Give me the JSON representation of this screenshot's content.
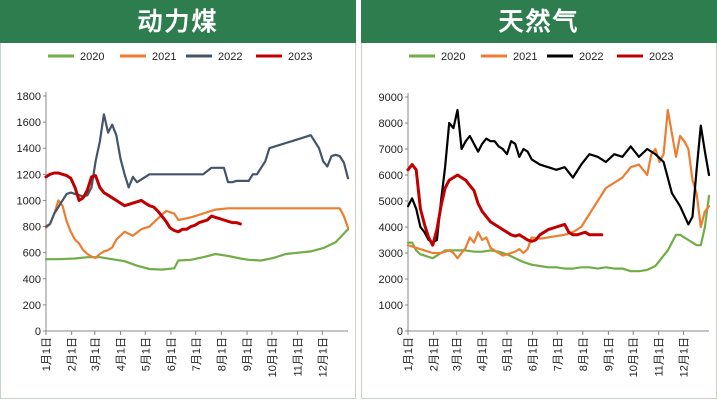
{
  "charts": [
    {
      "title": "动力煤",
      "chart_data": {
        "type": "line",
        "title": "动力煤",
        "xlabel": "",
        "ylabel": "",
        "ylim": [
          0,
          1800
        ],
        "yticks": [
          0,
          200,
          400,
          600,
          800,
          1000,
          1200,
          1400,
          1600,
          1800
        ],
        "x_ticks": [
          "1月1日",
          "2月1日",
          "3月1日",
          "4月1日",
          "5月1日",
          "6月1日",
          "7月1日",
          "8月1日",
          "9月1日",
          "10月1日",
          "11月1日",
          "12月1日"
        ],
        "x_unit": "day_of_year",
        "xlim": [
          0,
          365
        ],
        "legend_position": "top",
        "series": [
          {
            "name": "2020",
            "color": "#70ad47",
            "x": [
              0,
              15,
              35,
              50,
              65,
              80,
              95,
              110,
              125,
              140,
              155,
              160,
              175,
              190,
              205,
              220,
              235,
              245,
              260,
              275,
              290,
              305,
              320,
              335,
              350,
              365
            ],
            "y": [
              550,
              550,
              555,
              565,
              565,
              550,
              535,
              500,
              475,
              470,
              480,
              540,
              545,
              565,
              590,
              575,
              555,
              545,
              540,
              560,
              590,
              600,
              610,
              635,
              680,
              780
            ]
          },
          {
            "name": "2021",
            "color": "#ed7d31",
            "x": [
              0,
              5,
              10,
              15,
              20,
              25,
              30,
              35,
              40,
              45,
              50,
              55,
              60,
              65,
              70,
              75,
              80,
              85,
              95,
              105,
              115,
              125,
              135,
              145,
              155,
              160,
              175,
              190,
              205,
              220,
              240,
              260,
              280,
              300,
              320,
              340,
              350,
              355,
              360,
              365
            ],
            "y": [
              790,
              820,
              900,
              1000,
              960,
              840,
              760,
              700,
              670,
              620,
              590,
              570,
              560,
              590,
              610,
              620,
              640,
              700,
              760,
              730,
              780,
              800,
              860,
              920,
              900,
              850,
              870,
              900,
              930,
              940,
              940,
              940,
              940,
              940,
              940,
              940,
              940,
              940,
              880,
              790
            ]
          },
          {
            "name": "2022",
            "color": "#44546a",
            "x": [
              0,
              5,
              10,
              15,
              20,
              25,
              30,
              35,
              40,
              45,
              50,
              55,
              60,
              65,
              70,
              75,
              80,
              85,
              90,
              95,
              100,
              105,
              110,
              115,
              120,
              125,
              130,
              135,
              140,
              145,
              150,
              160,
              170,
              180,
              190,
              200,
              205,
              210,
              215,
              220,
              225,
              230,
              235,
              240,
              245,
              250,
              255,
              260,
              265,
              270,
              280,
              290,
              300,
              310,
              320,
              330,
              335,
              340,
              345,
              350,
              355,
              360,
              365
            ],
            "y": [
              800,
              820,
              900,
              950,
              1000,
              1050,
              1060,
              1050,
              1040,
              1030,
              1040,
              1100,
              1300,
              1450,
              1660,
              1520,
              1580,
              1500,
              1320,
              1200,
              1100,
              1180,
              1140,
              1160,
              1180,
              1200,
              1200,
              1200,
              1200,
              1200,
              1200,
              1200,
              1200,
              1200,
              1200,
              1250,
              1250,
              1250,
              1250,
              1140,
              1140,
              1150,
              1150,
              1150,
              1150,
              1200,
              1200,
              1250,
              1300,
              1400,
              1420,
              1440,
              1460,
              1480,
              1500,
              1400,
              1300,
              1260,
              1340,
              1350,
              1340,
              1290,
              1170
            ]
          },
          {
            "name": "2023",
            "color": "#c00000",
            "x": [
              0,
              5,
              10,
              15,
              20,
              25,
              30,
              35,
              40,
              45,
              50,
              55,
              60,
              65,
              70,
              75,
              80,
              85,
              90,
              95,
              100,
              105,
              110,
              115,
              120,
              125,
              130,
              135,
              140,
              145,
              150,
              155,
              160,
              165,
              170,
              175,
              180,
              185,
              190,
              195,
              200,
              205,
              210,
              215,
              220,
              225,
              230,
              235
            ],
            "y": [
              1180,
              1200,
              1210,
              1210,
              1200,
              1190,
              1170,
              1100,
              1000,
              1020,
              1080,
              1180,
              1190,
              1100,
              1060,
              1040,
              1020,
              1000,
              980,
              960,
              970,
              980,
              990,
              1000,
              980,
              960,
              950,
              920,
              880,
              840,
              790,
              770,
              760,
              780,
              780,
              800,
              810,
              830,
              840,
              850,
              880,
              870,
              860,
              850,
              840,
              830,
              830,
              820
            ]
          }
        ]
      }
    },
    {
      "title": "天然气",
      "chart_data": {
        "type": "line",
        "title": "天然气",
        "xlabel": "",
        "ylabel": "",
        "ylim": [
          0,
          9000
        ],
        "yticks": [
          0,
          1000,
          2000,
          3000,
          4000,
          5000,
          6000,
          7000,
          8000,
          9000
        ],
        "x_ticks": [
          "1月1日",
          "2月1日",
          "3月1日",
          "4月1日",
          "5月1日",
          "6月1日",
          "7月1日",
          "8月1日",
          "9月1日",
          "10月1日",
          "11月1日",
          "12月1日"
        ],
        "x_unit": "day_of_year",
        "xlim": [
          0,
          365
        ],
        "legend_position": "top",
        "series": [
          {
            "name": "2020",
            "color": "#70ad47",
            "x": [
              0,
              5,
              10,
              15,
              20,
              25,
              30,
              35,
              40,
              45,
              50,
              60,
              70,
              80,
              90,
              100,
              110,
              120,
              130,
              140,
              150,
              160,
              170,
              180,
              190,
              200,
              210,
              220,
              230,
              240,
              250,
              260,
              270,
              280,
              290,
              300,
              305,
              310,
              315,
              320,
              325,
              330,
              335,
              340,
              345,
              350,
              355,
              360,
              365
            ],
            "y": [
              3400,
              3400,
              3100,
              2950,
              2900,
              2850,
              2800,
              2900,
              3000,
              3100,
              3100,
              3100,
              3100,
              3050,
              3050,
              3100,
              3050,
              2950,
              2800,
              2650,
              2550,
              2500,
              2450,
              2450,
              2400,
              2400,
              2450,
              2450,
              2400,
              2450,
              2400,
              2400,
              2300,
              2300,
              2350,
              2500,
              2700,
              2900,
              3100,
              3400,
              3700,
              3700,
              3600,
              3500,
              3400,
              3300,
              3300,
              4000,
              5200
            ]
          },
          {
            "name": "2021",
            "color": "#ed7d31",
            "x": [
              0,
              10,
              20,
              30,
              40,
              50,
              55,
              60,
              65,
              70,
              75,
              80,
              85,
              90,
              95,
              100,
              105,
              110,
              115,
              120,
              125,
              130,
              135,
              140,
              145,
              150,
              160,
              170,
              180,
              190,
              200,
              210,
              220,
              230,
              240,
              250,
              260,
              270,
              280,
              290,
              295,
              300,
              305,
              310,
              315,
              320,
              325,
              330,
              335,
              340,
              345,
              350,
              355,
              360,
              365
            ],
            "y": [
              3300,
              3200,
              3100,
              3000,
              3000,
              3100,
              3000,
              2800,
              3000,
              3200,
              3600,
              3400,
              3800,
              3500,
              3600,
              3200,
              3100,
              3000,
              2900,
              2950,
              3000,
              3050,
              3150,
              3000,
              3150,
              3600,
              3550,
              3600,
              3650,
              3700,
              3800,
              4000,
              4500,
              5000,
              5500,
              5700,
              5900,
              6300,
              6400,
              6000,
              6800,
              7000,
              6500,
              6800,
              8500,
              7600,
              6700,
              7500,
              7300,
              7000,
              5800,
              5300,
              4000,
              4600,
              4800
            ]
          },
          {
            "name": "2022",
            "color": "#000000",
            "x": [
              0,
              5,
              10,
              15,
              20,
              25,
              30,
              35,
              40,
              45,
              50,
              55,
              60,
              65,
              70,
              75,
              80,
              85,
              90,
              95,
              100,
              105,
              110,
              115,
              120,
              125,
              130,
              135,
              140,
              145,
              150,
              160,
              170,
              180,
              190,
              200,
              210,
              220,
              230,
              240,
              250,
              260,
              270,
              280,
              290,
              300,
              310,
              320,
              330,
              340,
              345,
              350,
              355,
              360,
              365
            ],
            "y": [
              4800,
              5100,
              4700,
              4000,
              3800,
              3500,
              3400,
              3500,
              5000,
              6300,
              8000,
              7800,
              8500,
              7000,
              7300,
              7500,
              7200,
              6900,
              7200,
              7400,
              7300,
              7300,
              7100,
              7000,
              6800,
              7300,
              7200,
              6700,
              7000,
              6900,
              6600,
              6400,
              6300,
              6200,
              6300,
              5900,
              6400,
              6800,
              6700,
              6500,
              6800,
              6700,
              7100,
              6700,
              7000,
              6800,
              6500,
              5300,
              4800,
              4100,
              4400,
              6200,
              7900,
              6900,
              6000
            ]
          },
          {
            "name": "2023",
            "color": "#c00000",
            "x": [
              0,
              5,
              10,
              15,
              20,
              25,
              30,
              35,
              40,
              45,
              50,
              55,
              60,
              65,
              70,
              75,
              80,
              85,
              90,
              95,
              100,
              105,
              110,
              115,
              120,
              125,
              130,
              135,
              140,
              145,
              150,
              155,
              160,
              165,
              170,
              175,
              180,
              185,
              190,
              195,
              200,
              205,
              210,
              215,
              220,
              225,
              230,
              235
            ],
            "y": [
              6200,
              6400,
              6200,
              4700,
              4100,
              3600,
              3300,
              3900,
              4800,
              5500,
              5800,
              5900,
              6000,
              5900,
              5800,
              5600,
              5400,
              4900,
              4600,
              4400,
              4200,
              4100,
              4000,
              3900,
              3800,
              3700,
              3650,
              3700,
              3600,
              3500,
              3450,
              3500,
              3700,
              3800,
              3900,
              3950,
              4000,
              4050,
              4100,
              3800,
              3700,
              3700,
              3750,
              3800,
              3700,
              3700,
              3700,
              3700
            ]
          }
        ]
      }
    }
  ]
}
